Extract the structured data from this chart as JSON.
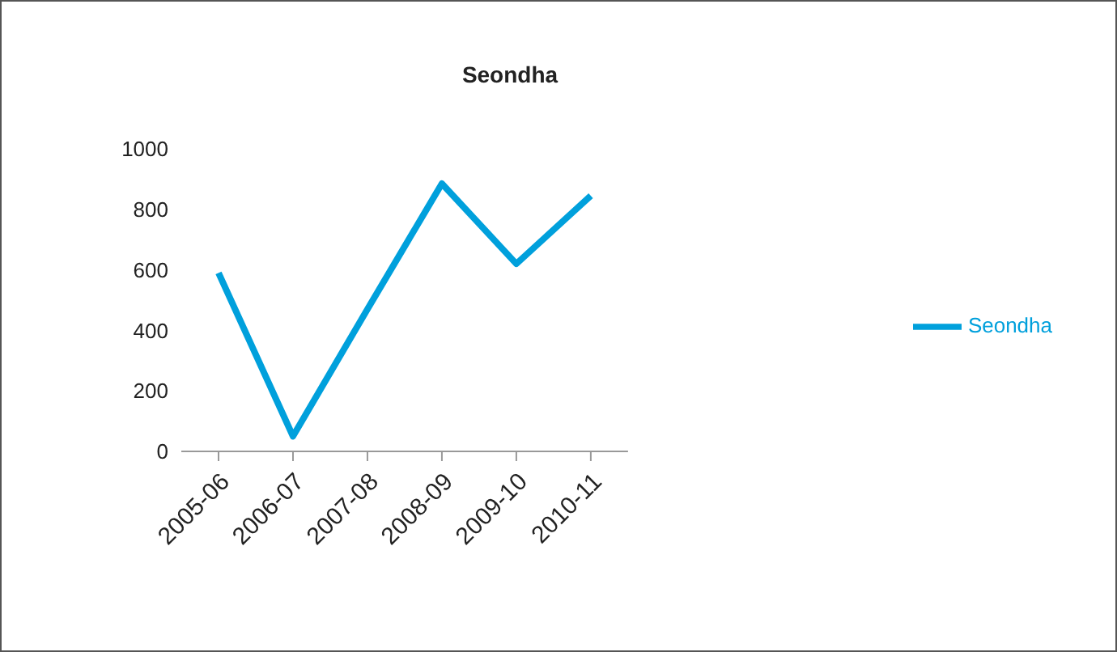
{
  "chart_data": {
    "type": "line",
    "title": "Seondha",
    "categories": [
      "2005-06",
      "2006-07",
      "2007-08",
      "2008-09",
      "2009-10",
      "2010-11"
    ],
    "series": [
      {
        "name": "Seondha",
        "color": "#00a0dc",
        "values": [
          590,
          50,
          470,
          885,
          620,
          845
        ]
      }
    ],
    "ylim": [
      0,
      1000
    ],
    "yticks": [
      0,
      200,
      400,
      600,
      800,
      1000
    ],
    "legend": "right",
    "marker": "none"
  }
}
